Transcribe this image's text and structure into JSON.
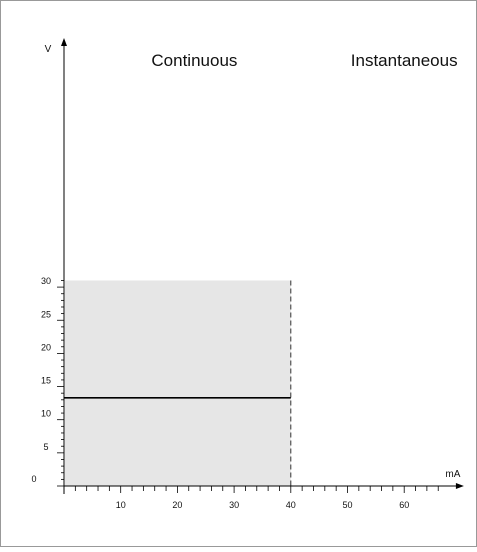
{
  "chart_data": {
    "type": "area",
    "x_unit": "mA",
    "y_unit": "V",
    "xlim": [
      0,
      70
    ],
    "ylim": [
      0,
      32
    ],
    "x_ticks": [
      10,
      20,
      30,
      40,
      50,
      60
    ],
    "x_ticks_text": [
      "10",
      "20",
      "30",
      "40",
      "50",
      "60"
    ],
    "y_ticks": [
      0,
      5,
      10,
      15,
      20,
      25,
      30
    ],
    "y_ticks_text": [
      "0",
      "5",
      "10",
      "15",
      "20",
      "25",
      "30"
    ],
    "minor_tick_step_x": 2,
    "minor_tick_step_y": 1,
    "regions": [
      {
        "label": "Continuous",
        "x_range": [
          0,
          40
        ],
        "y_max": 31,
        "shaded": true,
        "color": "#e6e6e6"
      },
      {
        "label": "Instantaneous",
        "x_range": [
          40,
          70
        ],
        "shaded": false
      }
    ],
    "boundary_x": 40,
    "series": [
      {
        "x": [
          0,
          40
        ],
        "y": [
          13.3,
          13.3
        ],
        "color": "#000000"
      }
    ],
    "grid": false
  }
}
